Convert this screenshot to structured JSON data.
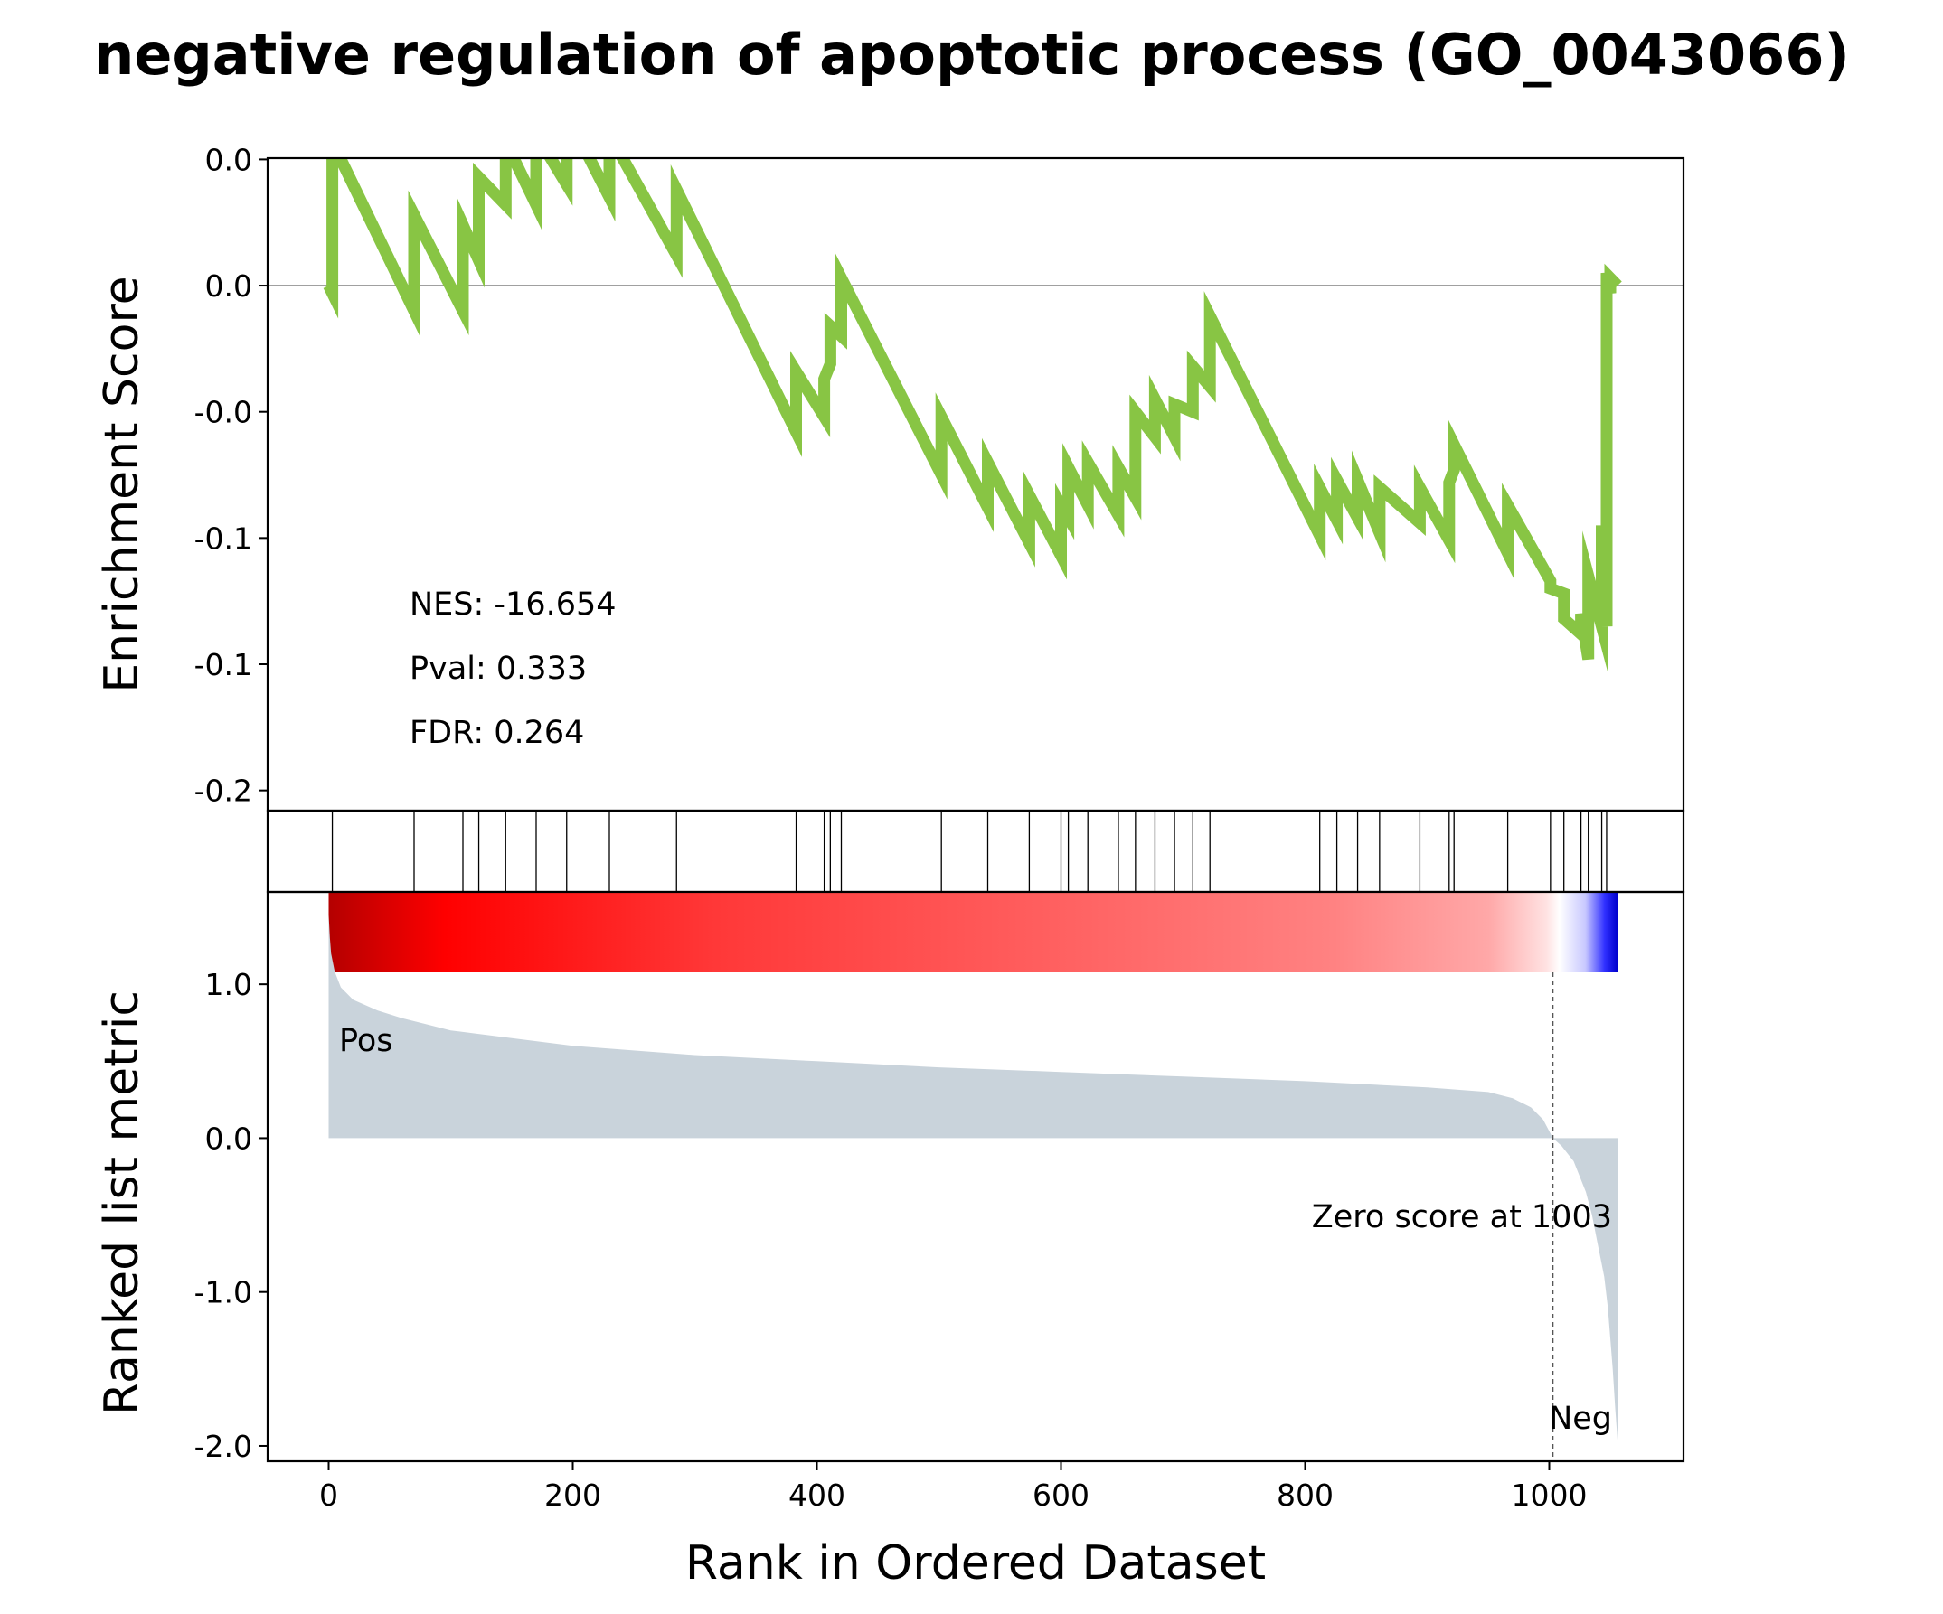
{
  "chart_data": {
    "type": "line",
    "title": "negative regulation of apoptotic process (GO_0043066)",
    "xlabel": "Rank in Ordered Dataset",
    "xlim": [
      -50,
      1110
    ],
    "x_ticks": [
      "0",
      "200",
      "400",
      "600",
      "800",
      "1000"
    ],
    "x_tick_values": [
      0,
      200,
      400,
      600,
      800,
      1000
    ],
    "enrichment_panel": {
      "ylabel": "Enrichment Score",
      "ylim": [
        -0.208,
        0.0505
      ],
      "y_tick_values": [
        0.05,
        0.0,
        -0.05,
        -0.1,
        -0.15,
        -0.2
      ],
      "y_tick_labels": [
        "0.0",
        "0.0",
        "-0.0",
        "-0.1",
        "-0.1",
        "-0.2"
      ],
      "zero_line": 0.0,
      "line_color": "#88c544",
      "series": {
        "name": "",
        "x": [
          0,
          3,
          3,
          70,
          70,
          110,
          110,
          123,
          123,
          145,
          145,
          170,
          170,
          195,
          195,
          230,
          230,
          285,
          285,
          383,
          383,
          406,
          406,
          411,
          411,
          420,
          420,
          502,
          502,
          540,
          540,
          574,
          574,
          600,
          600,
          606,
          606,
          622,
          622,
          647,
          647,
          661,
          661,
          677,
          677,
          693,
          693,
          708,
          708,
          722,
          722,
          812,
          812,
          826,
          826,
          843,
          843,
          861,
          861,
          894,
          894,
          918,
          918,
          922,
          922,
          966,
          966,
          1001,
          1001,
          1012,
          1012,
          1026,
          1026,
          1032,
          1032,
          1043,
          1043,
          1047,
          1047,
          1050,
          1050,
          1056
        ],
        "y": [
          0.0,
          -0.003,
          0.057,
          -0.01,
          0.028,
          -0.01,
          0.024,
          0.01,
          0.043,
          0.032,
          0.057,
          0.032,
          0.06,
          0.04,
          0.068,
          0.035,
          0.06,
          0.012,
          0.038,
          -0.058,
          -0.034,
          -0.052,
          -0.037,
          -0.031,
          -0.016,
          -0.02,
          0.003,
          -0.075,
          -0.052,
          -0.088,
          -0.07,
          -0.102,
          -0.083,
          -0.107,
          -0.087,
          -0.092,
          -0.072,
          -0.087,
          -0.07,
          -0.091,
          -0.072,
          -0.084,
          -0.05,
          -0.06,
          -0.045,
          -0.06,
          -0.047,
          -0.05,
          -0.032,
          -0.04,
          -0.012,
          -0.099,
          -0.08,
          -0.093,
          -0.077,
          -0.092,
          -0.077,
          -0.098,
          -0.08,
          -0.094,
          -0.08,
          -0.101,
          -0.078,
          -0.073,
          -0.063,
          -0.106,
          -0.087,
          -0.117,
          -0.12,
          -0.122,
          -0.132,
          -0.138,
          -0.13,
          -0.148,
          -0.115,
          -0.135,
          -0.095,
          -0.135,
          0.005,
          -0.003,
          0.003,
          0.0
        ]
      },
      "stats": {
        "nes": "NES: -16.654",
        "pval": "Pval: 0.333",
        "fdr": "FDR: 0.264"
      }
    },
    "hits_panel": {
      "hit_ranks": [
        3,
        70,
        110,
        123,
        145,
        170,
        195,
        230,
        285,
        383,
        406,
        411,
        420,
        502,
        540,
        574,
        600,
        606,
        622,
        647,
        661,
        677,
        693,
        708,
        722,
        812,
        826,
        843,
        861,
        894,
        918,
        922,
        966,
        1001,
        1012,
        1026,
        1032,
        1043,
        1047
      ]
    },
    "ranking_panel": {
      "ylabel": "Ranked list metric",
      "ylim": [
        -2.1,
        1.6
      ],
      "y_tick_values": [
        1.0,
        0.0,
        -1.0,
        -2.0
      ],
      "y_tick_labels": [
        "1.0",
        "0.0",
        "-1.0",
        "-2.0"
      ],
      "fill_color": "#c9d3db",
      "metric_curve": {
        "x": [
          0,
          1,
          2,
          5,
          10,
          20,
          40,
          60,
          80,
          100,
          150,
          200,
          300,
          400,
          500,
          600,
          700,
          800,
          900,
          950,
          970,
          985,
          995,
          1003,
          1010,
          1020,
          1030,
          1035,
          1040,
          1045,
          1048,
          1050,
          1052,
          1054,
          1056
        ],
        "y": [
          1.45,
          1.3,
          1.2,
          1.08,
          0.98,
          0.9,
          0.83,
          0.78,
          0.74,
          0.7,
          0.65,
          0.6,
          0.54,
          0.5,
          0.46,
          0.43,
          0.4,
          0.37,
          0.33,
          0.3,
          0.26,
          0.2,
          0.12,
          0.0,
          -0.05,
          -0.15,
          -0.35,
          -0.5,
          -0.7,
          -0.9,
          -1.1,
          -1.3,
          -1.5,
          -1.75,
          -1.97
        ]
      },
      "zero_score_rank": 1003,
      "zero_score_label": "Zero score at 1003",
      "pos_label": "Pos",
      "neg_label": "Neg",
      "pos_color": "#ff0000",
      "neg_color": "#0000ff"
    }
  }
}
